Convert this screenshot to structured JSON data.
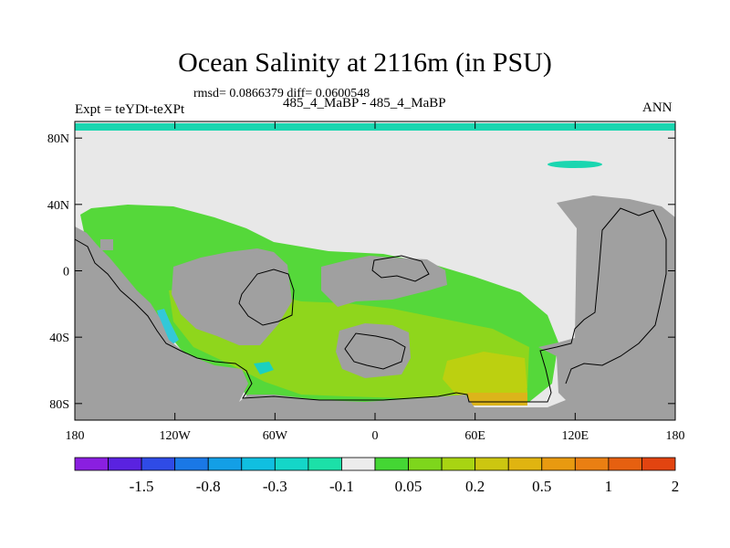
{
  "chart_data": {
    "type": "heatmap",
    "title": "Ocean Salinity at 2116m (in PSU)",
    "stats_line": "rmsd= 0.0866379 diff= 0.0600548",
    "left_label": "Expt = teYDt-teXPt",
    "center_label": "485_4_MaBP - 485_4_MaBP",
    "right_label": "ANN",
    "x_ticks": [
      "180",
      "120W",
      "60W",
      "0",
      "60E",
      "120E",
      "180"
    ],
    "x_tick_values": [
      -180,
      -120,
      -60,
      0,
      60,
      120,
      180
    ],
    "y_ticks": [
      "80N",
      "40N",
      "0",
      "40S",
      "80S"
    ],
    "y_tick_values": [
      80,
      40,
      0,
      -40,
      -80
    ],
    "xlim": [
      -180,
      180
    ],
    "ylim": [
      -90,
      90
    ],
    "land_color": "#a0a0a0",
    "colorbar": {
      "colors": [
        "#8a1fe0",
        "#5a22e0",
        "#2f4be6",
        "#1a78e6",
        "#139fe6",
        "#10bfe0",
        "#14d6c8",
        "#1ce0a8",
        "#ececec",
        "#44d634",
        "#7ed61c",
        "#a8d412",
        "#ccc610",
        "#e0b410",
        "#e89a10",
        "#ea7f12",
        "#e66010",
        "#e24410"
      ],
      "labels": [
        "-1.5",
        "-0.8",
        "-0.3",
        "-0.1",
        "0.05",
        "0.2",
        "0.5",
        "1",
        "2"
      ]
    }
  }
}
